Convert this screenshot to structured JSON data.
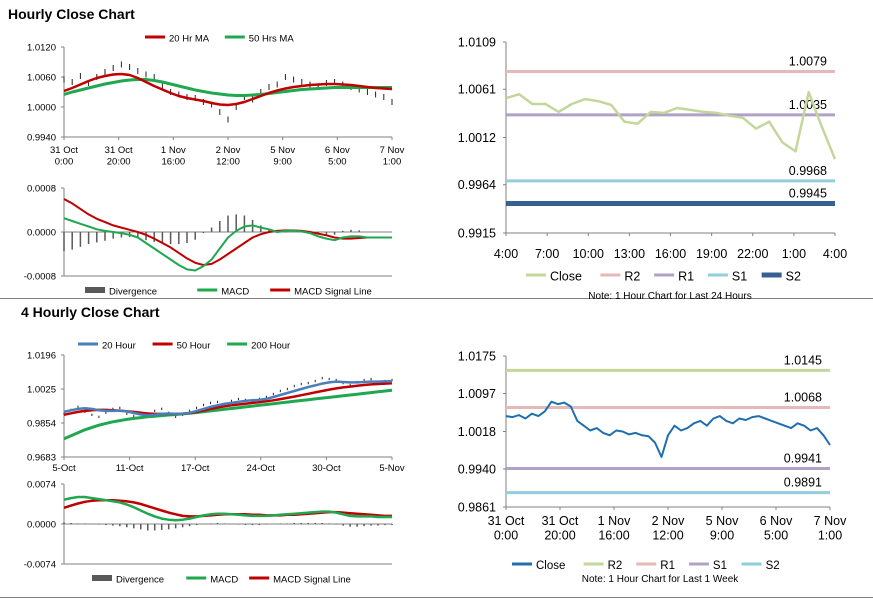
{
  "colors": {
    "ma20": "#c00000",
    "ma50": "#1fa84f",
    "ma200": "#1fa84f",
    "ma20_4h": "#4a7ebb",
    "price": "#222222",
    "close": "#c4d79b",
    "close2": "#1f6fb0",
    "r2": "#e6b8b7",
    "r1": "#b1a0c7",
    "s1": "#92cddc",
    "s2": "#366092",
    "r2b": "#c4d79b",
    "r1b": "#e6b8b7",
    "s1b": "#b1a0c7",
    "s2b": "#92cddc",
    "macd": "#1fa84f",
    "signal": "#c00000",
    "divergence": "#595959",
    "axis": "#808080"
  },
  "sections": {
    "hourly": {
      "title": "Hourly Close Chart"
    },
    "four_hourly": {
      "title": "4 Hourly Close Chart"
    }
  },
  "chart_data": [
    {
      "id": "hourly_price",
      "type": "line",
      "title": "",
      "legend": [
        "20 Hr MA",
        "50 Hrs MA"
      ],
      "ylim": [
        0.994,
        1.012
      ],
      "yticks": [
        "1.0120",
        "1.0060",
        "1.0000",
        "0.9940"
      ],
      "ytick_values": [
        1.012,
        1.006,
        1.0,
        0.994
      ],
      "xticks": [
        [
          "31 Oct",
          "0:00"
        ],
        [
          "31 Oct",
          "20:00"
        ],
        [
          "1 Nov",
          "16:00"
        ],
        [
          "2 Nov",
          "12:00"
        ],
        [
          "5 Nov",
          "9:00"
        ],
        [
          "6 Nov",
          "5:00"
        ],
        [
          "7 Nov",
          "1:00"
        ]
      ],
      "price": [
        1.0055,
        1.005,
        1.0062,
        1.0048,
        1.006,
        1.007,
        1.0078,
        1.0085,
        1.008,
        1.0072,
        1.0065,
        1.006,
        1.0042,
        1.003,
        1.0025,
        1.002,
        1.0018,
        1.001,
        1.0005,
        0.999,
        0.9975,
        1.0,
        1.002,
        1.0015,
        1.003,
        1.004,
        1.0045,
        1.006,
        1.0055,
        1.005,
        1.0045,
        1.004,
        1.0048,
        1.005,
        1.0045,
        1.004,
        1.0035,
        1.003,
        1.0025,
        1.002,
        1.001
      ],
      "ma20": [
        1.0032,
        1.0038,
        1.0045,
        1.0052,
        1.0058,
        1.0062,
        1.0065,
        1.0066,
        1.0064,
        1.0058,
        1.005,
        1.0042,
        1.0035,
        1.0028,
        1.0022,
        1.0018,
        1.0015,
        1.0012,
        1.0008,
        1.0005,
        1.0004,
        1.0006,
        1.001,
        1.0016,
        1.0022,
        1.0028,
        1.0033,
        1.0037,
        1.004,
        1.0042,
        1.0044,
        1.0045,
        1.0046,
        1.0046,
        1.0045,
        1.0044,
        1.0042,
        1.004,
        1.0038,
        1.0037,
        1.0036
      ],
      "ma50": [
        1.0025,
        1.003,
        1.0034,
        1.0038,
        1.0042,
        1.0046,
        1.0049,
        1.0052,
        1.0054,
        1.0055,
        1.0055,
        1.0053,
        1.005,
        1.0046,
        1.0042,
        1.0038,
        1.0034,
        1.0031,
        1.0028,
        1.0026,
        1.0024,
        1.0023,
        1.0023,
        1.0024,
        1.0025,
        1.0027,
        1.0029,
        1.0031,
        1.0033,
        1.0035,
        1.0036,
        1.0037,
        1.0038,
        1.0039,
        1.0039,
        1.0039,
        1.0039,
        1.0039,
        1.0039,
        1.0039,
        1.0039
      ]
    },
    {
      "id": "hourly_macd",
      "type": "line",
      "legend": [
        "Divergence",
        "MACD",
        "MACD Signal Line"
      ],
      "ylim": [
        -0.0008,
        0.0008
      ],
      "yticks": [
        "0.0008",
        "0.0000",
        "-0.0008"
      ],
      "ytick_values": [
        0.0008,
        0.0,
        -0.0008
      ],
      "macd": [
        0.00025,
        0.0002,
        0.00015,
        0.0001,
        5e-05,
        2e-05,
        0.0,
        -2e-05,
        -5e-05,
        -0.0001,
        -0.0002,
        -0.0003,
        -0.0004,
        -0.0005,
        -0.0006,
        -0.00068,
        -0.0007,
        -0.00062,
        -0.0005,
        -0.0003,
        -0.0001,
        2e-05,
        0.0001,
        0.00012,
        8e-05,
        5e-05,
        0.0,
        2e-05,
        3e-05,
        1e-05,
        -2e-05,
        -8e-05,
        -0.00012,
        -0.00015,
        -0.0001,
        -8e-05,
        -8e-05,
        -0.0001,
        -0.0001,
        -0.0001,
        -0.0001
      ],
      "signal": [
        0.0006,
        0.00052,
        0.00042,
        0.00032,
        0.00024,
        0.00018,
        0.00012,
        8e-05,
        4e-05,
        0.0,
        -5e-05,
        -0.00012,
        -0.0002,
        -0.00028,
        -0.00038,
        -0.00048,
        -0.00056,
        -0.0006,
        -0.00058,
        -0.0005,
        -0.0004,
        -0.0003,
        -0.0002,
        -0.0001,
        -4e-05,
        0.0,
        2e-05,
        3e-05,
        3e-05,
        2e-05,
        0.0,
        -3e-05,
        -6e-05,
        -0.0001,
        -0.00012,
        -0.00012,
        -0.00011,
        -0.0001,
        -0.0001,
        -0.0001,
        -0.0001
      ],
      "divergence": [
        -0.00035,
        -0.00032,
        -0.00027,
        -0.00022,
        -0.00019,
        -0.00016,
        -0.00012,
        -0.0001,
        -9e-05,
        -0.0001,
        -0.00015,
        -0.00018,
        -0.0002,
        -0.00022,
        -0.00022,
        -0.0002,
        -0.00014,
        -2e-05,
        8e-05,
        0.0002,
        0.0003,
        0.00032,
        0.0003,
        0.00022,
        0.00012,
        5e-05,
        -2e-05,
        -1e-05,
        0.0,
        -1e-05,
        -2e-05,
        -5e-05,
        -6e-05,
        -5e-05,
        2e-05,
        4e-05,
        3e-05,
        0.0,
        0.0,
        0.0,
        0.0
      ]
    },
    {
      "id": "hourly_levels",
      "type": "line",
      "note": "Note: 1 Hour Chart for Last 24 Hours",
      "ylim": [
        0.9915,
        1.0109
      ],
      "yticks": [
        "1.0109",
        "1.0061",
        "1.0012",
        "0.9964",
        "0.9915"
      ],
      "ytick_values": [
        1.0109,
        1.0061,
        1.0012,
        0.9964,
        0.9915
      ],
      "xticks": [
        "4:00",
        "7:00",
        "10:00",
        "13:00",
        "16:00",
        "19:00",
        "22:00",
        "1:00",
        "4:00"
      ],
      "close": [
        1.0052,
        1.0056,
        1.0046,
        1.0046,
        1.0038,
        1.0046,
        1.0051,
        1.0049,
        1.0045,
        1.0028,
        1.0026,
        1.0038,
        1.0037,
        1.0042,
        1.004,
        1.0038,
        1.0037,
        1.0034,
        1.0032,
        1.0021,
        1.0028,
        1.0007,
        0.9998,
        1.0058,
        1.0023,
        0.999
      ],
      "levels": [
        {
          "name": "R2",
          "value": 1.0079,
          "label": "1.0079"
        },
        {
          "name": "R1",
          "value": 1.0035,
          "label": "1.0035"
        },
        {
          "name": "S1",
          "value": 0.9968,
          "label": "0.9968"
        },
        {
          "name": "S2",
          "value": 0.9945,
          "label": "0.9945"
        }
      ],
      "legend": [
        "Close",
        "R2",
        "R1",
        "S1",
        "S2"
      ]
    },
    {
      "id": "four_hourly_price",
      "type": "line",
      "legend": [
        "20 Hour",
        "50 Hour",
        "200 Hour"
      ],
      "ylim": [
        0.9683,
        1.0196
      ],
      "yticks": [
        "1.0196",
        "1.0025",
        "0.9854",
        "0.9683"
      ],
      "ytick_values": [
        1.0196,
        1.0025,
        0.9854,
        0.9683
      ],
      "xticks": [
        "5-Oct",
        "11-Oct",
        "17-Oct",
        "24-Oct",
        "30-Oct",
        "5-Nov"
      ],
      "price": [
        0.99,
        0.992,
        0.9935,
        0.991,
        0.9895,
        0.9885,
        0.9905,
        0.9925,
        0.993,
        0.99,
        0.989,
        0.988,
        0.9895,
        0.9915,
        0.9925,
        0.9905,
        0.9885,
        0.9895,
        0.9915,
        0.993,
        0.9945,
        0.9955,
        0.996,
        0.995,
        0.9965,
        0.9975,
        0.997,
        0.996,
        0.9975,
        0.9985,
        1.0,
        1.0015,
        1.0025,
        1.004,
        1.005,
        1.0055,
        1.0065,
        1.008,
        1.0075,
        1.007,
        1.0055,
        1.0045,
        1.006,
        1.007,
        1.0075,
        1.006,
        1.0065,
        1.007
      ],
      "ma20": [
        0.991,
        0.9918,
        0.9925,
        0.9928,
        0.9925,
        0.9918,
        0.9915,
        0.9915,
        0.9917,
        0.9912,
        0.9905,
        0.9897,
        0.9893,
        0.9895,
        0.99,
        0.9902,
        0.99,
        0.99,
        0.9905,
        0.9915,
        0.9925,
        0.9935,
        0.9943,
        0.995,
        0.9955,
        0.996,
        0.9965,
        0.9968,
        0.997,
        0.9975,
        0.9985,
        0.9995,
        1.0005,
        1.0015,
        1.0025,
        1.0035,
        1.0043,
        1.0052,
        1.0058,
        1.0062,
        1.006,
        1.0058,
        1.0058,
        1.006,
        1.0062,
        1.0062,
        1.0063,
        1.0064
      ],
      "ma50": [
        0.9895,
        0.9903,
        0.991,
        0.9915,
        0.9918,
        0.992,
        0.992,
        0.9918,
        0.9916,
        0.9913,
        0.991,
        0.9906,
        0.9902,
        0.99,
        0.99,
        0.99,
        0.99,
        0.9901,
        0.9904,
        0.991,
        0.9917,
        0.9925,
        0.9932,
        0.9938,
        0.9943,
        0.9947,
        0.9951,
        0.9955,
        0.9959,
        0.9963,
        0.9968,
        0.9974,
        0.998,
        0.9987,
        0.9994,
        1.0001,
        1.0008,
        1.0015,
        1.0022,
        1.0028,
        1.0033,
        1.0037,
        1.0041,
        1.0045,
        1.0048,
        1.005,
        1.0052,
        1.0054
      ],
      "ma200": [
        0.9775,
        0.979,
        0.9805,
        0.982,
        0.9832,
        0.9843,
        0.9852,
        0.986,
        0.9866,
        0.9872,
        0.9877,
        0.9881,
        0.9885,
        0.9888,
        0.9891,
        0.9894,
        0.9897,
        0.99,
        0.9903,
        0.9907,
        0.9911,
        0.9915,
        0.9919,
        0.9923,
        0.9927,
        0.9931,
        0.9935,
        0.9939,
        0.9943,
        0.9947,
        0.9951,
        0.9955,
        0.9959,
        0.9963,
        0.9967,
        0.9971,
        0.9975,
        0.9979,
        0.9983,
        0.9987,
        0.9991,
        0.9995,
        0.9999,
        1.0003,
        1.0007,
        1.0011,
        1.0015,
        1.0019
      ]
    },
    {
      "id": "four_hourly_macd",
      "type": "line",
      "legend": [
        "Divergence",
        "MACD",
        "MACD Signal Line"
      ],
      "ylim": [
        -0.0074,
        0.0074
      ],
      "yticks": [
        "0.0074",
        "0.0000",
        "-0.0074"
      ],
      "ytick_values": [
        0.0074,
        0.0,
        -0.0074
      ],
      "macd": [
        0.0045,
        0.0048,
        0.005,
        0.005,
        0.0048,
        0.0046,
        0.0044,
        0.0042,
        0.004,
        0.0036,
        0.0031,
        0.0025,
        0.0019,
        0.0014,
        0.001,
        0.0008,
        0.0007,
        0.0008,
        0.001,
        0.0013,
        0.0016,
        0.0018,
        0.0019,
        0.0019,
        0.0018,
        0.0017,
        0.0016,
        0.0015,
        0.0015,
        0.0015,
        0.0016,
        0.0017,
        0.0018,
        0.0019,
        0.002,
        0.0021,
        0.0022,
        0.0023,
        0.0023,
        0.0021,
        0.0018,
        0.0015,
        0.0014,
        0.0014,
        0.0014,
        0.0013,
        0.0013,
        0.0013
      ],
      "signal": [
        0.003,
        0.0034,
        0.0038,
        0.0041,
        0.0043,
        0.0044,
        0.0044,
        0.0044,
        0.0043,
        0.0042,
        0.004,
        0.0037,
        0.0033,
        0.0029,
        0.0025,
        0.0021,
        0.0018,
        0.0015,
        0.0014,
        0.0014,
        0.0015,
        0.0016,
        0.0017,
        0.0018,
        0.0018,
        0.0018,
        0.0018,
        0.0017,
        0.0017,
        0.0016,
        0.0016,
        0.0016,
        0.0017,
        0.0017,
        0.0018,
        0.0019,
        0.002,
        0.0021,
        0.0022,
        0.0022,
        0.0021,
        0.002,
        0.0019,
        0.0018,
        0.0017,
        0.0016,
        0.0015,
        0.0015
      ],
      "divergence": [
        0.0003,
        0.0002,
        0.0001,
        0.0001,
        0.0,
        -0.0001,
        -0.0002,
        -0.0003,
        -0.0004,
        -0.0006,
        -0.0008,
        -0.001,
        -0.0012,
        -0.0012,
        -0.0011,
        -0.001,
        -0.0008,
        -0.0006,
        -0.0004,
        -0.0002,
        0.0,
        0.0001,
        0.0002,
        0.0001,
        0.0,
        -0.0001,
        -0.0002,
        -0.0002,
        -0.0002,
        -0.0001,
        0.0,
        0.0001,
        0.0001,
        0.0002,
        0.0002,
        0.0002,
        0.0002,
        0.0002,
        0.0001,
        -0.0001,
        -0.0003,
        -0.0005,
        -0.0005,
        -0.0004,
        -0.0003,
        -0.0003,
        -0.0002,
        -0.0002
      ]
    },
    {
      "id": "four_hourly_levels",
      "type": "line",
      "note": "Note: 1 Hour Chart for Last 1 Week",
      "ylim": [
        0.9861,
        1.0175
      ],
      "yticks": [
        "1.0175",
        "1.0097",
        "1.0018",
        "0.9940",
        "0.9861"
      ],
      "ytick_values": [
        1.0175,
        1.0097,
        1.0018,
        0.994,
        0.9861
      ],
      "xticks": [
        [
          "31 Oct",
          "0:00"
        ],
        [
          "31 Oct",
          "20:00"
        ],
        [
          "1 Nov",
          "16:00"
        ],
        [
          "2 Nov",
          "12:00"
        ],
        [
          "5 Nov",
          "9:00"
        ],
        [
          "6 Nov",
          "5:00"
        ],
        [
          "7 Nov",
          "1:00"
        ]
      ],
      "close": [
        1.005,
        1.0048,
        1.0052,
        1.0045,
        1.0055,
        1.005,
        1.006,
        1.008,
        1.0075,
        1.0078,
        1.007,
        1.004,
        1.003,
        1.002,
        1.0025,
        1.0015,
        1.001,
        1.002,
        1.0018,
        1.0012,
        1.0015,
        1.001,
        1.0008,
        0.9995,
        0.9965,
        1.001,
        1.003,
        1.002,
        1.0025,
        1.0035,
        1.004,
        1.003,
        1.0045,
        1.005,
        1.004,
        1.0035,
        1.0045,
        1.0042,
        1.0048,
        1.005,
        1.0045,
        1.004,
        1.0035,
        1.003,
        1.0025,
        1.0035,
        1.003,
        1.002,
        1.0025,
        1.001,
        0.999
      ],
      "levels": [
        {
          "name": "R2",
          "value": 1.0145,
          "label": "1.0145"
        },
        {
          "name": "R1",
          "value": 1.0068,
          "label": "1.0068"
        },
        {
          "name": "S1",
          "value": 0.9941,
          "label": "0.9941"
        },
        {
          "name": "S2",
          "value": 0.9891,
          "label": "0.9891"
        }
      ],
      "legend": [
        "Close",
        "R2",
        "R1",
        "S1",
        "S2"
      ]
    }
  ]
}
